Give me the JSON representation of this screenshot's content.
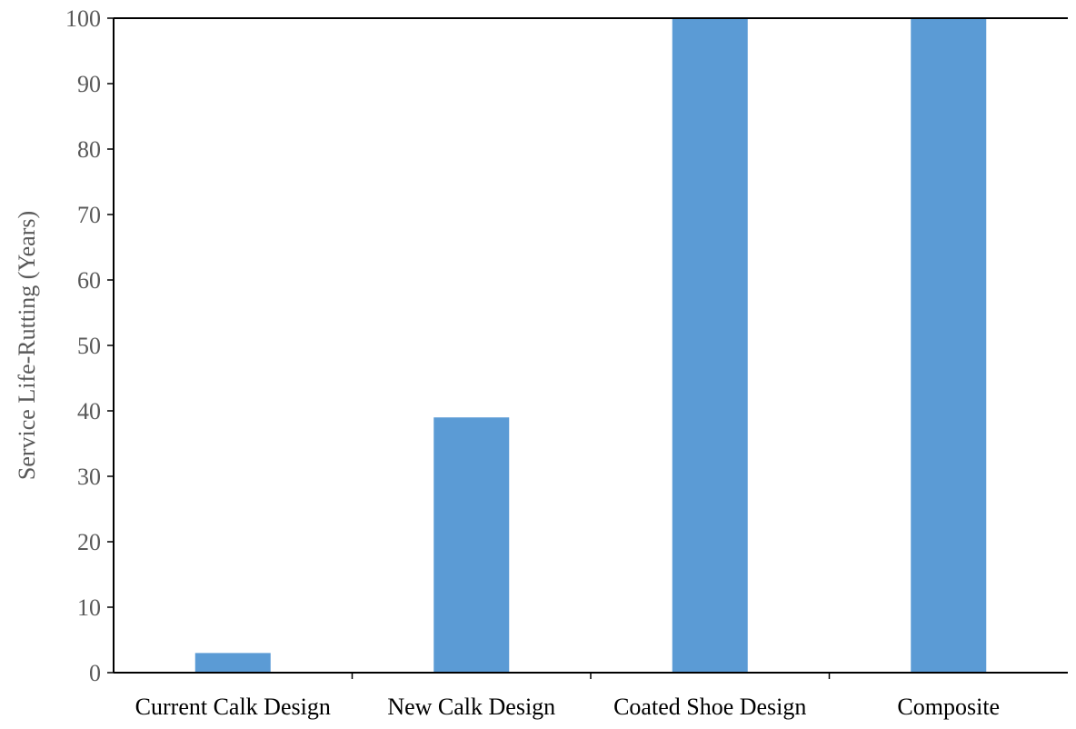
{
  "chart_data": {
    "type": "bar",
    "categories": [
      "Current Calk Design",
      "New Calk Design",
      "Coated Shoe Design",
      "Composite"
    ],
    "values": [
      3,
      39,
      100,
      100
    ],
    "title": "",
    "xlabel": "",
    "ylabel": "Service Life-Rutting (Years)",
    "ylim": [
      0,
      100
    ],
    "yticks": [
      0,
      10,
      20,
      30,
      40,
      50,
      60,
      70,
      80,
      90,
      100
    ],
    "grid": false,
    "legend": "none",
    "colors": {
      "bar": "#5b9bd5",
      "axis": "#000000",
      "tick_text": "#595959",
      "ylabel_text": "#595959",
      "category_text": "#000000"
    }
  }
}
